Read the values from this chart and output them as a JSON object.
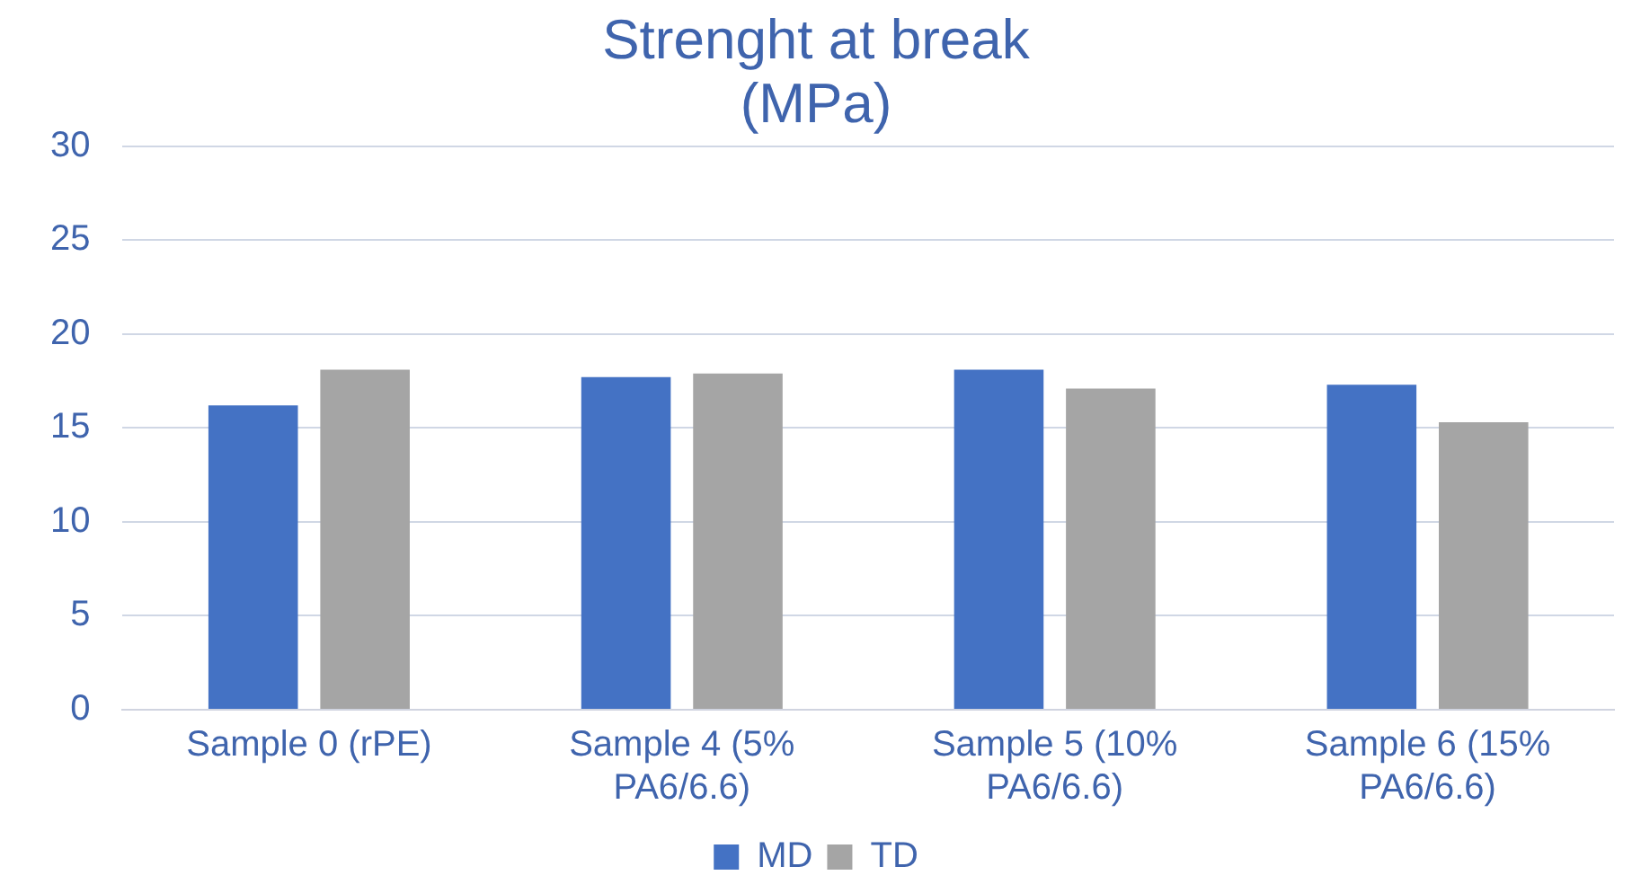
{
  "chart_data": {
    "type": "bar",
    "title": "Strenght at break (MPa)",
    "categories": [
      "Sample 0 (rPE)",
      "Sample 4 (5% PA6/6.6)",
      "Sample 5 (10% PA6/6.6)",
      "Sample 6 (15% PA6/6.6)"
    ],
    "series": [
      {
        "name": "MD",
        "color": "#4472c4",
        "values": [
          16.2,
          17.7,
          18.1,
          17.3
        ]
      },
      {
        "name": "TD",
        "color": "#a5a5a5",
        "values": [
          18.1,
          17.9,
          17.1,
          15.3
        ]
      }
    ],
    "ylim": [
      0,
      30
    ],
    "yticks": [
      0,
      5,
      10,
      15,
      20,
      25,
      30
    ],
    "grid": "y",
    "legend": "bottom"
  }
}
